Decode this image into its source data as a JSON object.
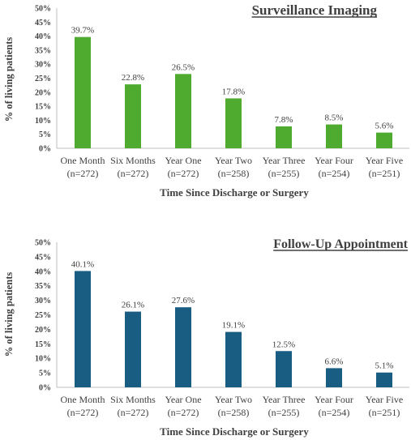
{
  "chart_data": [
    {
      "type": "bar",
      "title": "Surveillance Imaging",
      "ylabel": "% of living patients",
      "xlabel": "Time Since Discharge or Surgery",
      "ylim": [
        0,
        50
      ],
      "yticks": [
        "0%",
        "5%",
        "10%",
        "15%",
        "20%",
        "25%",
        "30%",
        "35%",
        "40%",
        "45%",
        "50%"
      ],
      "categories": [
        "One Month",
        "Six Months",
        "Year One",
        "Year Two",
        "Year Three",
        "Year Four",
        "Year Five"
      ],
      "category_n": [
        "(n=272)",
        "(n=272)",
        "(n=272)",
        "(n=258)",
        "(n=255)",
        "(n=254)",
        "(n=251)"
      ],
      "values": [
        39.7,
        22.8,
        26.5,
        17.8,
        7.8,
        8.5,
        5.6
      ],
      "value_labels": [
        "39.7%",
        "22.8%",
        "26.5%",
        "17.8%",
        "7.8%",
        "8.5%",
        "5.6%"
      ],
      "color": "#4eab2f",
      "grid": false,
      "legend": "none"
    },
    {
      "type": "bar",
      "title": "Follow-Up Appointment",
      "ylabel": "% of living patients",
      "xlabel": "Time Since Discharge or Surgery",
      "ylim": [
        0,
        50
      ],
      "yticks": [
        "0%",
        "5%",
        "10%",
        "15%",
        "20%",
        "25%",
        "30%",
        "35%",
        "40%",
        "45%",
        "50%"
      ],
      "categories": [
        "One Month",
        "Six Months",
        "Year One",
        "Year Two",
        "Year Three",
        "Year Four",
        "Year Five"
      ],
      "category_n": [
        "(n=272)",
        "(n=272)",
        "(n=272)",
        "(n=258)",
        "(n=255)",
        "(n=254)",
        "(n=251)"
      ],
      "values": [
        40.1,
        26.1,
        27.6,
        19.1,
        12.5,
        6.6,
        5.1
      ],
      "value_labels": [
        "40.1%",
        "26.1%",
        "27.6%",
        "19.1%",
        "12.5%",
        "6.6%",
        "5.1%"
      ],
      "color": "#195d82",
      "grid": false,
      "legend": "none"
    }
  ]
}
